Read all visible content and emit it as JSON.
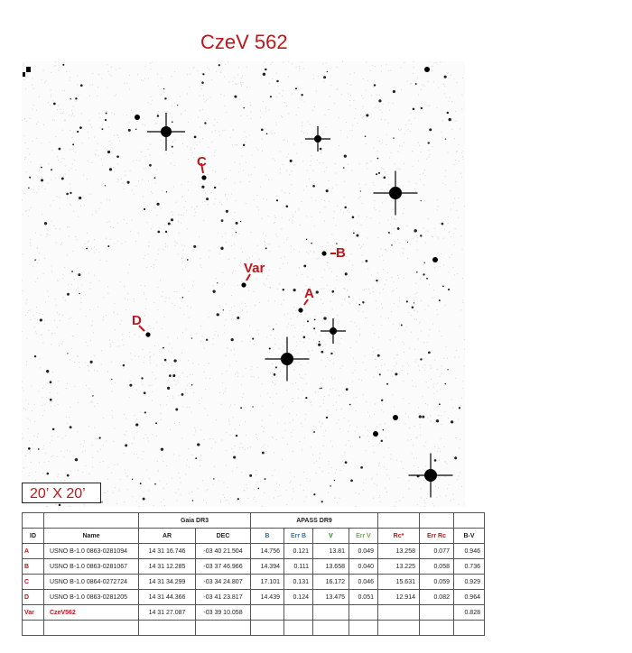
{
  "title": "CzeV 562",
  "scale_label": "20’ X 20’",
  "labels": {
    "A": "A",
    "B": "-B",
    "C": "C",
    "D": "D",
    "Var": "Var"
  },
  "colors": {
    "accent": "#c0161b",
    "b_header": "#2e75b6",
    "v_header": "#00a000",
    "errv_header": "#70ad47"
  },
  "table": {
    "groups": {
      "gaia": "Gaia DR3",
      "apass": "APASS DR9"
    },
    "headers": [
      "ID",
      "Name",
      "AR",
      "DEC",
      "B",
      "Err B",
      "V",
      "Err V",
      "Rc*",
      "Err Rc",
      "B-V"
    ],
    "rows": [
      [
        "A",
        "USNO B-1.0 0863-0281094",
        "14 31 16.746",
        "-03 40 21.504",
        "14.756",
        "0.121",
        "13.81",
        "0.049",
        "13.258",
        "0.077",
        "0.946"
      ],
      [
        "B",
        "USNO B-1.0 0863-0281067",
        "14 31 12.285",
        "-03 37 46.966",
        "14.394",
        "0.111",
        "13.658",
        "0.040",
        "13.225",
        "0.058",
        "0.736"
      ],
      [
        "C",
        "USNO B-1.0 0864-0272724",
        "14 31 34.299",
        "-03 34 24.807",
        "17.101",
        "0.131",
        "16.172",
        "0.046",
        "15.631",
        "0.059",
        "0.929"
      ],
      [
        "D",
        "USNO B-1.0 0863-0281205",
        "14 31 44.366",
        "-03 41 23.817",
        "14.439",
        "0.124",
        "13.475",
        "0.051",
        "12.914",
        "0.082",
        "0.964"
      ],
      [
        "Var",
        "CzeV562",
        "14 31 27.087",
        "-03 39 10.058",
        "",
        "",
        "",
        "",
        "",
        "",
        "0.828"
      ]
    ]
  }
}
